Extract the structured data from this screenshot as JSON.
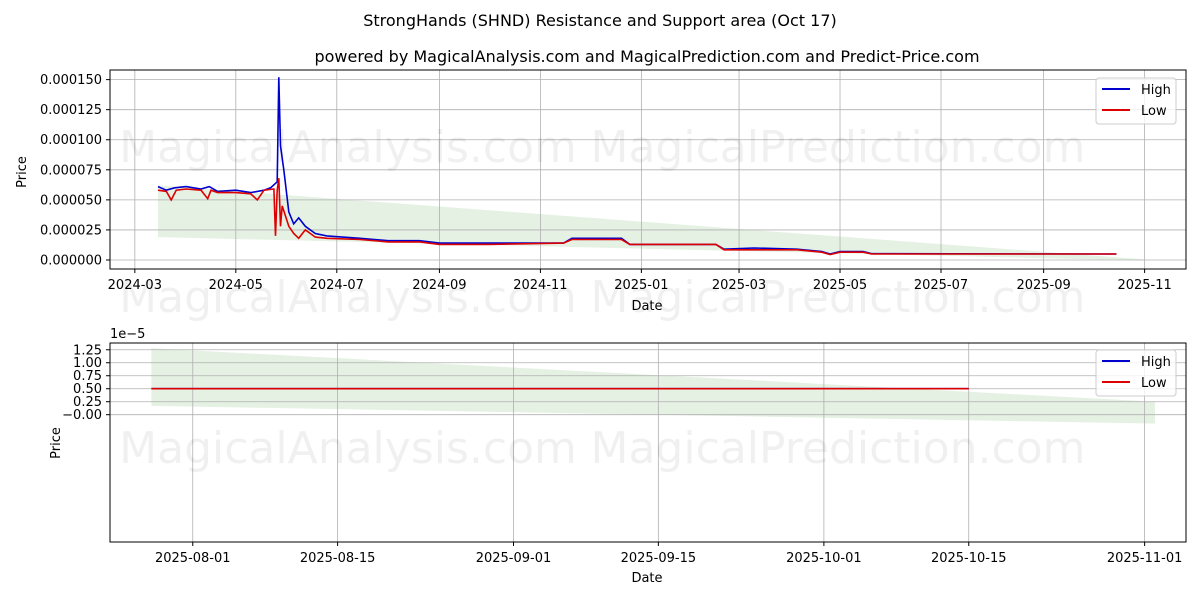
{
  "title": "StrongHands (SHND) Resistance and Support area (Oct 17)",
  "subtitle": "powered by MagicalAnalysis.com and MagicalPrediction.com and Predict-Price.com",
  "watermarks": [
    "MagicalAnalysis.com",
    "MagicalPrediction.com"
  ],
  "colors": {
    "high": "#0000cc",
    "low": "#dd0000",
    "band": "#e5f1e3",
    "grid": "#b0b0b0"
  },
  "chart_data": [
    {
      "type": "line",
      "xlabel": "Date",
      "ylabel": "Price",
      "ylim": [
        -7.5e-06,
        0.000158
      ],
      "xlim": [
        "2024-02-15",
        "2025-11-26"
      ],
      "grid": true,
      "legend_position": "top-right",
      "legend": [
        "High",
        "Low"
      ],
      "x_ticks": [
        "2024-03",
        "2024-05",
        "2024-07",
        "2024-09",
        "2024-11",
        "2025-01",
        "2025-03",
        "2025-05",
        "2025-07",
        "2025-09",
        "2025-11"
      ],
      "y_ticks": [
        "0.000000",
        "0.000025",
        "0.000050",
        "0.000075",
        "0.000100",
        "0.000125",
        "0.000150"
      ],
      "band": {
        "start": "2024-03-15",
        "end": "2025-11-01",
        "upper": [
          6.2e-05,
          5e-07
        ],
        "lower": [
          1.9e-05,
          -5e-07
        ]
      },
      "series": [
        {
          "name": "High",
          "x": [
            "2024-03-15",
            "2024-03-20",
            "2024-03-25",
            "2024-04-01",
            "2024-04-10",
            "2024-04-15",
            "2024-04-20",
            "2024-05-01",
            "2024-05-10",
            "2024-05-18",
            "2024-05-22",
            "2024-05-26",
            "2024-05-27",
            "2024-05-28",
            "2024-05-30",
            "2024-06-02",
            "2024-06-05",
            "2024-06-08",
            "2024-06-12",
            "2024-06-18",
            "2024-06-25",
            "2024-07-15",
            "2024-08-01",
            "2024-08-20",
            "2024-09-01",
            "2024-10-01",
            "2024-11-15",
            "2024-11-20",
            "2024-12-20",
            "2024-12-25",
            "2025-01-10",
            "2025-02-15",
            "2025-02-20",
            "2025-03-10",
            "2025-04-05",
            "2025-04-20",
            "2025-04-25",
            "2025-05-01",
            "2025-05-15",
            "2025-05-20",
            "2025-10-15"
          ],
          "y": [
            6.1e-05,
            5.8e-05,
            6e-05,
            6.1e-05,
            5.9e-05,
            6.1e-05,
            5.7e-05,
            5.8e-05,
            5.6e-05,
            5.8e-05,
            6e-05,
            6.5e-05,
            0.000152,
            9.5e-05,
            7.5e-05,
            4e-05,
            3e-05,
            3.5e-05,
            2.8e-05,
            2.2e-05,
            2e-05,
            1.8e-05,
            1.6e-05,
            1.6e-05,
            1.4e-05,
            1.4e-05,
            1.4e-05,
            1.8e-05,
            1.8e-05,
            1.3e-05,
            1.3e-05,
            1.3e-05,
            9e-06,
            1e-05,
            9e-06,
            7e-06,
            5e-06,
            7e-06,
            7e-06,
            5.2e-06,
            5e-06
          ]
        },
        {
          "name": "Low",
          "x": [
            "2024-03-15",
            "2024-03-20",
            "2024-03-23",
            "2024-03-26",
            "2024-04-01",
            "2024-04-10",
            "2024-04-14",
            "2024-04-16",
            "2024-04-20",
            "2024-05-01",
            "2024-05-10",
            "2024-05-14",
            "2024-05-18",
            "2024-05-24",
            "2024-05-25",
            "2024-05-26",
            "2024-05-27",
            "2024-05-28",
            "2024-05-29",
            "2024-06-02",
            "2024-06-05",
            "2024-06-08",
            "2024-06-12",
            "2024-06-18",
            "2024-06-25",
            "2024-07-15",
            "2024-08-01",
            "2024-08-20",
            "2024-09-01",
            "2024-10-01",
            "2024-11-15",
            "2024-11-20",
            "2024-12-20",
            "2024-12-25",
            "2025-01-10",
            "2025-02-15",
            "2025-02-20",
            "2025-03-10",
            "2025-04-05",
            "2025-04-20",
            "2025-04-25",
            "2025-05-01",
            "2025-05-15",
            "2025-05-20",
            "2025-10-15"
          ],
          "y": [
            5.8e-05,
            5.7e-05,
            5e-05,
            5.8e-05,
            5.9e-05,
            5.8e-05,
            5.1e-05,
            5.8e-05,
            5.6e-05,
            5.6e-05,
            5.5e-05,
            5e-05,
            5.8e-05,
            5.9e-05,
            2e-05,
            5.8e-05,
            6.8e-05,
            2.8e-05,
            4.5e-05,
            2.8e-05,
            2.2e-05,
            1.8e-05,
            2.5e-05,
            1.9e-05,
            1.8e-05,
            1.7e-05,
            1.5e-05,
            1.5e-05,
            1.3e-05,
            1.3e-05,
            1.4e-05,
            1.7e-05,
            1.7e-05,
            1.3e-05,
            1.3e-05,
            1.3e-05,
            8.5e-06,
            8.5e-06,
            8.5e-06,
            6.5e-06,
            4.5e-06,
            6.5e-06,
            6.5e-06,
            5e-06,
            5e-06
          ]
        }
      ]
    },
    {
      "type": "line",
      "xlabel": "Date",
      "ylabel": "Price",
      "offset_label": "1e−5",
      "ylim": [
        -2.45e-05,
        1.38e-05
      ],
      "xlim": [
        "2025-07-24",
        "2025-11-05"
      ],
      "grid": true,
      "legend_position": "top-right",
      "legend": [
        "High",
        "Low"
      ],
      "x_ticks": [
        "2025-08-01",
        "2025-08-15",
        "2025-09-01",
        "2025-09-15",
        "2025-10-01",
        "2025-10-15",
        "2025-11-01"
      ],
      "y_ticks": [
        "−0.00",
        "0.25",
        "0.50",
        "0.75",
        "1.00",
        "1.25"
      ],
      "y_tick_values": [
        0,
        2.5e-06,
        5e-06,
        7.5e-06,
        1e-05,
        1.25e-05
      ],
      "band": {
        "start": "2025-07-28",
        "end": "2025-11-02",
        "upper": [
          1.28e-05,
          2.5e-06
        ],
        "lower": [
          1.7e-06,
          -1.7e-06
        ]
      },
      "series": [
        {
          "name": "High",
          "x": [
            "2025-07-28",
            "2025-10-15"
          ],
          "y": [
            5e-06,
            5e-06
          ]
        },
        {
          "name": "Low",
          "x": [
            "2025-07-28",
            "2025-10-15"
          ],
          "y": [
            5e-06,
            5e-06
          ]
        }
      ]
    }
  ]
}
